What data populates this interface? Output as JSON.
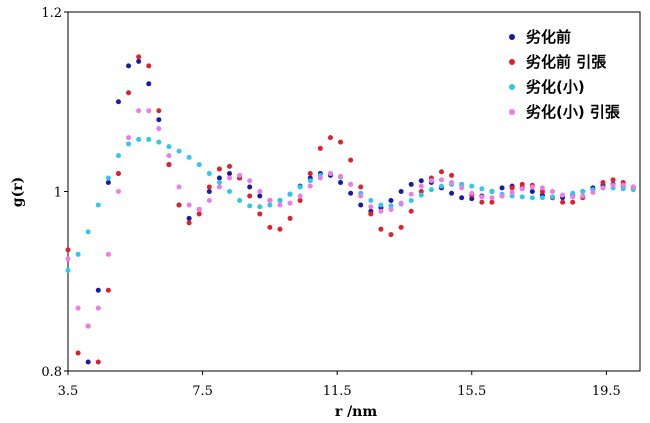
{
  "chart_data": {
    "type": "scatter",
    "xlabel": "r /nm",
    "ylabel": "g(r)",
    "xlim": [
      3.5,
      20.5
    ],
    "ylim": [
      0.8,
      1.2
    ],
    "x_ticks": [
      3.5,
      7.5,
      11.5,
      15.5,
      19.5
    ],
    "x_tick_labels": [
      "3.5",
      "7.5",
      "11.5",
      "15.5",
      "19.5"
    ],
    "y_ticks": [
      0.8,
      1.0,
      1.2
    ],
    "y_tick_labels": [
      "0.8",
      "1",
      "1.2"
    ],
    "grid": false,
    "legend_position": "top-right",
    "series": [
      {
        "name": "劣化前",
        "color": "#1a1aa6",
        "x": [
          4.1,
          4.4,
          4.7,
          5.0,
          5.3,
          5.6,
          5.9,
          6.2,
          6.5,
          6.8,
          7.1,
          7.4,
          7.7,
          8.0,
          8.3,
          8.6,
          8.9,
          9.2,
          9.5,
          9.8,
          10.1,
          10.4,
          10.7,
          11.0,
          11.3,
          11.6,
          11.9,
          12.2,
          12.5,
          12.8,
          13.1,
          13.4,
          13.7,
          14.0,
          14.3,
          14.6,
          14.9,
          15.2,
          15.5,
          15.8,
          16.1,
          16.4,
          16.7,
          17.0,
          17.3,
          17.6,
          17.9,
          18.2,
          18.5,
          18.8,
          19.1,
          19.4,
          19.7,
          20.0,
          20.3
        ],
        "y": [
          0.81,
          0.89,
          1.01,
          1.1,
          1.14,
          1.145,
          1.12,
          1.08,
          1.03,
          0.985,
          0.97,
          0.98,
          1.0,
          1.015,
          1.02,
          1.015,
          1.005,
          0.995,
          0.99,
          0.99,
          0.997,
          1.006,
          1.015,
          1.02,
          1.018,
          1.01,
          0.998,
          0.985,
          0.978,
          0.982,
          0.99,
          1.0,
          1.008,
          1.012,
          1.01,
          1.004,
          0.998,
          0.993,
          0.992,
          0.995,
          1.0,
          1.004,
          1.006,
          1.004,
          1.0,
          0.996,
          0.993,
          0.993,
          0.996,
          1.0,
          1.004,
          1.007,
          1.008,
          1.006,
          1.004
        ]
      },
      {
        "name": "劣化前 引張",
        "color": "#e0202a",
        "x": [
          3.5,
          3.8,
          4.1,
          4.4,
          4.7,
          5.0,
          5.3,
          5.6,
          5.9,
          6.2,
          6.5,
          6.8,
          7.1,
          7.4,
          7.7,
          8.0,
          8.3,
          8.6,
          8.9,
          9.2,
          9.5,
          9.8,
          10.1,
          10.4,
          10.7,
          11.0,
          11.3,
          11.6,
          11.9,
          12.2,
          12.5,
          12.8,
          13.1,
          13.4,
          13.7,
          14.0,
          14.3,
          14.6,
          14.9,
          15.2,
          15.5,
          15.8,
          16.1,
          16.4,
          16.7,
          17.0,
          17.3,
          17.6,
          17.9,
          18.2,
          18.5,
          18.8,
          19.1,
          19.4,
          19.7,
          20.0,
          20.3
        ],
        "y": [
          0.935,
          0.82,
          0.85,
          0.81,
          0.89,
          1.02,
          1.11,
          1.15,
          1.14,
          1.09,
          1.03,
          0.985,
          0.965,
          0.975,
          1.005,
          1.025,
          1.028,
          1.015,
          0.995,
          0.975,
          0.96,
          0.958,
          0.97,
          0.99,
          1.02,
          1.048,
          1.06,
          1.055,
          1.035,
          1.005,
          0.975,
          0.958,
          0.952,
          0.96,
          0.978,
          1.0,
          1.015,
          1.022,
          1.018,
          1.008,
          0.996,
          0.988,
          0.988,
          0.995,
          1.004,
          1.008,
          1.007,
          1.0,
          0.993,
          0.988,
          0.988,
          0.993,
          1.002,
          1.01,
          1.013,
          1.01,
          1.005
        ]
      },
      {
        "name": "劣化(小)",
        "color": "#2fc8ea",
        "x": [
          3.5,
          3.8,
          4.1,
          4.4,
          4.7,
          5.0,
          5.3,
          5.6,
          5.9,
          6.2,
          6.5,
          6.8,
          7.1,
          7.4,
          7.7,
          8.0,
          8.3,
          8.6,
          8.9,
          9.2,
          9.5,
          9.8,
          10.1,
          10.4,
          10.7,
          11.0,
          11.3,
          11.6,
          11.9,
          12.2,
          12.5,
          12.8,
          13.1,
          13.4,
          13.7,
          14.0,
          14.3,
          14.6,
          14.9,
          15.2,
          15.5,
          15.8,
          16.1,
          16.4,
          16.7,
          17.0,
          17.3,
          17.6,
          17.9,
          18.2,
          18.5,
          18.8,
          19.1,
          19.4,
          19.7,
          20.0,
          20.3
        ],
        "y": [
          0.912,
          0.93,
          0.955,
          0.985,
          1.015,
          1.04,
          1.053,
          1.058,
          1.058,
          1.055,
          1.05,
          1.045,
          1.038,
          1.03,
          1.02,
          1.01,
          1.0,
          0.99,
          0.984,
          0.983,
          0.985,
          0.99,
          0.997,
          1.005,
          1.012,
          1.018,
          1.02,
          1.016,
          1.008,
          0.998,
          0.99,
          0.985,
          0.984,
          0.986,
          0.99,
          0.996,
          1.002,
          1.006,
          1.008,
          1.008,
          1.006,
          1.003,
          1.0,
          0.997,
          0.995,
          0.994,
          0.993,
          0.993,
          0.994,
          0.996,
          0.998,
          1.0,
          1.002,
          1.004,
          1.004,
          1.003,
          1.002
        ]
      },
      {
        "name": "劣化(小) 引張",
        "color": "#ee7be8",
        "x": [
          3.5,
          3.8,
          4.1,
          4.4,
          4.7,
          5.0,
          5.3,
          5.6,
          5.9,
          6.2,
          6.5,
          6.8,
          7.1,
          7.4,
          7.7,
          8.0,
          8.3,
          8.6,
          8.9,
          9.2,
          9.5,
          9.8,
          10.1,
          10.4,
          10.7,
          11.0,
          11.3,
          11.6,
          11.9,
          12.2,
          12.5,
          12.8,
          13.1,
          13.4,
          13.7,
          14.0,
          14.3,
          14.6,
          14.9,
          15.2,
          15.5,
          15.8,
          16.1,
          16.4,
          16.7,
          17.0,
          17.3,
          17.6,
          17.9,
          18.2,
          18.5,
          18.8,
          19.1,
          19.4,
          19.7,
          20.0,
          20.3
        ],
        "y": [
          0.925,
          0.87,
          0.85,
          0.87,
          0.93,
          1.0,
          1.06,
          1.09,
          1.09,
          1.07,
          1.04,
          1.005,
          0.985,
          0.98,
          0.99,
          1.005,
          1.015,
          1.018,
          1.012,
          1.0,
          0.99,
          0.985,
          0.987,
          0.995,
          1.006,
          1.015,
          1.02,
          1.017,
          1.008,
          0.995,
          0.983,
          0.978,
          0.98,
          0.987,
          0.997,
          1.006,
          1.012,
          1.013,
          1.01,
          1.004,
          0.998,
          0.994,
          0.993,
          0.995,
          0.999,
          1.003,
          1.005,
          1.004,
          1.0,
          0.996,
          0.994,
          0.995,
          0.999,
          1.004,
          1.007,
          1.007,
          1.005
        ]
      }
    ]
  }
}
